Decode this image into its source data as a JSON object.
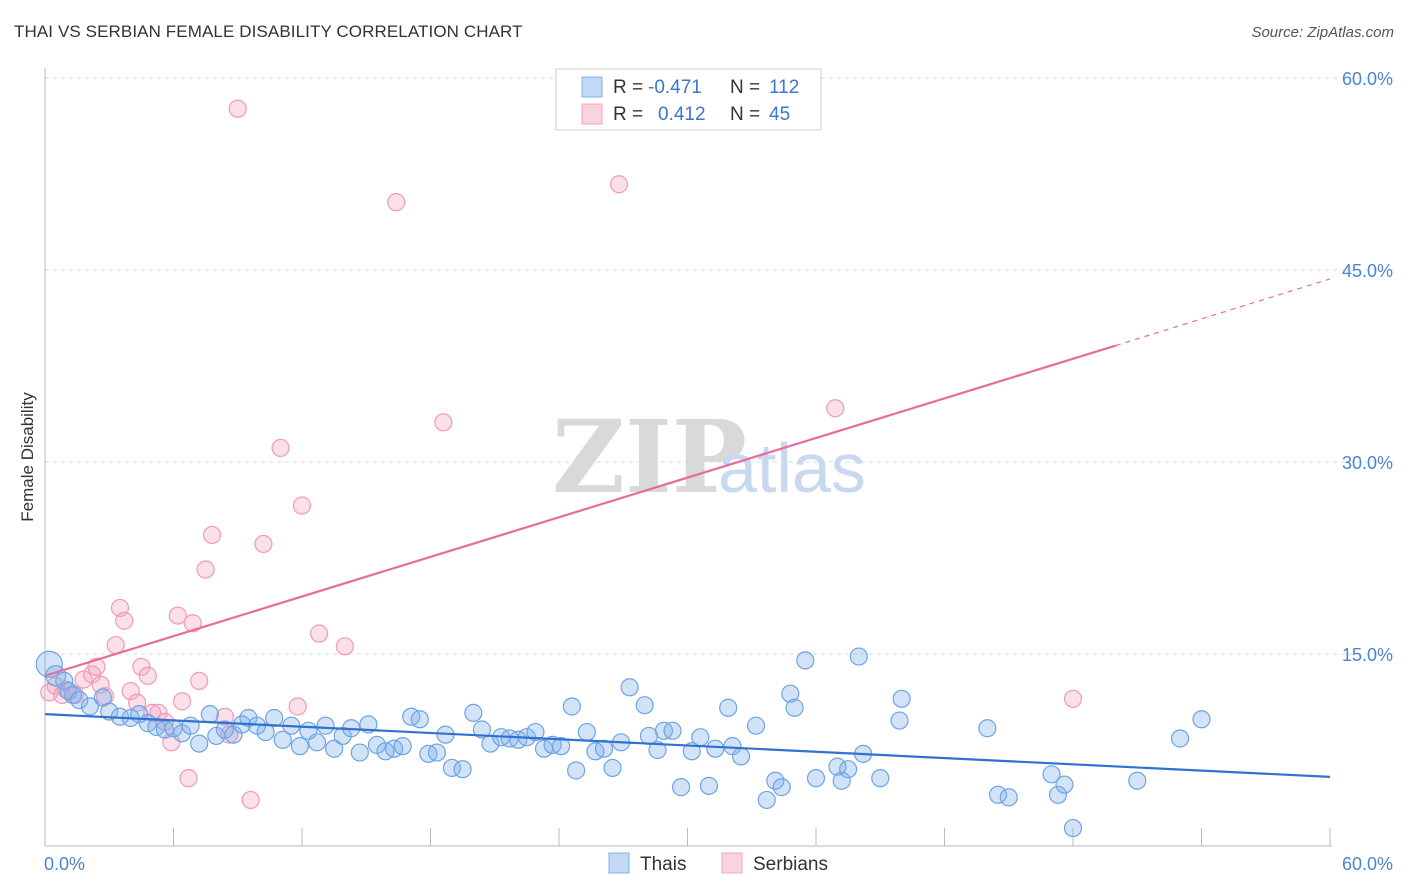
{
  "title": "THAI VS SERBIAN FEMALE DISABILITY CORRELATION CHART",
  "source": "Source: ZipAtlas.com",
  "watermark": {
    "zip": "ZIP",
    "atlas": "atlas"
  },
  "colors": {
    "thais": "#7fb0ea",
    "serbians": "#f4a6c0",
    "thais_line": "#2f72d0",
    "serbians_line": "#e86c98",
    "tick": "#4a86d0"
  },
  "chart_data": {
    "type": "scatter",
    "title": "THAI VS SERBIAN FEMALE DISABILITY CORRELATION CHART",
    "xlabel": "",
    "ylabel": "Female Disability",
    "xlim": [
      0,
      60
    ],
    "ylim": [
      0,
      60
    ],
    "x_tick_labels": [
      "0.0%",
      "60.0%"
    ],
    "y_ticks": [
      15,
      30,
      45,
      60
    ],
    "y_tick_labels": [
      "15.0%",
      "30.0%",
      "45.0%",
      "60.0%"
    ],
    "grid": true,
    "legend": {
      "placement": "top-center",
      "entries": [
        {
          "name": "Thais",
          "r_label": "R =",
          "r": "-0.471",
          "n_label": "N =",
          "n": "112"
        },
        {
          "name": "Serbians",
          "r_label": "R =",
          "r": "0.412",
          "n_label": "N =",
          "n": "45"
        }
      ]
    },
    "series": [
      {
        "name": "Thais",
        "trend": {
          "x": [
            0,
            60
          ],
          "y": [
            10.3,
            5.4
          ]
        },
        "points": [
          [
            0.2,
            14.2
          ],
          [
            0.5,
            13.3
          ],
          [
            0.9,
            12.9
          ],
          [
            1.1,
            12.1
          ],
          [
            1.3,
            11.8
          ],
          [
            1.6,
            11.4
          ],
          [
            2.1,
            10.9
          ],
          [
            2.7,
            11.6
          ],
          [
            3.0,
            10.5
          ],
          [
            3.5,
            10.1
          ],
          [
            4.0,
            10.0
          ],
          [
            4.4,
            10.3
          ],
          [
            4.8,
            9.6
          ],
          [
            5.2,
            9.3
          ],
          [
            5.6,
            9.1
          ],
          [
            6.0,
            9.2
          ],
          [
            6.4,
            8.8
          ],
          [
            6.8,
            9.4
          ],
          [
            7.2,
            8.0
          ],
          [
            7.7,
            10.3
          ],
          [
            8.0,
            8.6
          ],
          [
            8.4,
            9.1
          ],
          [
            8.8,
            8.7
          ],
          [
            9.2,
            9.5
          ],
          [
            9.5,
            10.0
          ],
          [
            9.9,
            9.4
          ],
          [
            10.3,
            8.9
          ],
          [
            10.7,
            10.0
          ],
          [
            11.1,
            8.3
          ],
          [
            11.5,
            9.4
          ],
          [
            11.9,
            7.8
          ],
          [
            12.3,
            9.0
          ],
          [
            12.7,
            8.1
          ],
          [
            13.1,
            9.4
          ],
          [
            13.5,
            7.6
          ],
          [
            13.9,
            8.6
          ],
          [
            14.3,
            9.2
          ],
          [
            14.7,
            7.3
          ],
          [
            15.1,
            9.5
          ],
          [
            15.5,
            7.9
          ],
          [
            15.9,
            7.4
          ],
          [
            16.3,
            7.6
          ],
          [
            16.7,
            7.8
          ],
          [
            17.1,
            10.1
          ],
          [
            17.5,
            9.9
          ],
          [
            17.9,
            7.2
          ],
          [
            18.3,
            7.3
          ],
          [
            18.7,
            8.7
          ],
          [
            19.0,
            6.1
          ],
          [
            19.5,
            6.0
          ],
          [
            20.0,
            10.4
          ],
          [
            20.4,
            9.1
          ],
          [
            20.8,
            8.0
          ],
          [
            21.3,
            8.5
          ],
          [
            21.7,
            8.4
          ],
          [
            22.1,
            8.3
          ],
          [
            22.5,
            8.5
          ],
          [
            22.9,
            8.9
          ],
          [
            23.3,
            7.6
          ],
          [
            23.7,
            7.9
          ],
          [
            24.1,
            7.8
          ],
          [
            24.6,
            10.9
          ],
          [
            24.8,
            5.9
          ],
          [
            25.3,
            8.9
          ],
          [
            25.7,
            7.4
          ],
          [
            26.1,
            7.6
          ],
          [
            26.5,
            6.1
          ],
          [
            26.9,
            8.1
          ],
          [
            27.3,
            12.4
          ],
          [
            28.0,
            11.0
          ],
          [
            28.2,
            8.6
          ],
          [
            28.6,
            7.5
          ],
          [
            28.9,
            9.0
          ],
          [
            29.3,
            9.0
          ],
          [
            29.7,
            4.6
          ],
          [
            30.2,
            7.4
          ],
          [
            30.6,
            8.5
          ],
          [
            31.0,
            4.7
          ],
          [
            31.3,
            7.6
          ],
          [
            31.9,
            10.8
          ],
          [
            32.1,
            7.8
          ],
          [
            32.5,
            7.0
          ],
          [
            33.2,
            9.4
          ],
          [
            33.7,
            3.6
          ],
          [
            34.1,
            5.1
          ],
          [
            34.4,
            4.6
          ],
          [
            34.8,
            11.9
          ],
          [
            35.0,
            10.8
          ],
          [
            35.5,
            14.5
          ],
          [
            36.0,
            5.3
          ],
          [
            37.0,
            6.2
          ],
          [
            37.2,
            5.1
          ],
          [
            37.5,
            6.0
          ],
          [
            38.0,
            14.8
          ],
          [
            38.2,
            7.2
          ],
          [
            39.0,
            5.3
          ],
          [
            39.9,
            9.8
          ],
          [
            40.0,
            11.5
          ],
          [
            44.0,
            9.2
          ],
          [
            44.5,
            4.0
          ],
          [
            45.0,
            3.8
          ],
          [
            47.0,
            5.6
          ],
          [
            47.3,
            4.0
          ],
          [
            47.6,
            4.8
          ],
          [
            48.0,
            1.4
          ],
          [
            51.0,
            5.1
          ],
          [
            53.0,
            8.4
          ],
          [
            54.0,
            9.9
          ]
        ]
      },
      {
        "name": "Serbians",
        "trend": {
          "x": [
            0,
            50
          ],
          "y": [
            13.3,
            39.1
          ]
        },
        "trend_extension": {
          "x": [
            50,
            60
          ],
          "y": [
            39.1,
            44.3
          ]
        },
        "points": [
          [
            0.2,
            12.0
          ],
          [
            0.5,
            12.5
          ],
          [
            0.8,
            11.8
          ],
          [
            1.0,
            12.2
          ],
          [
            1.4,
            11.8
          ],
          [
            1.8,
            13.0
          ],
          [
            2.2,
            13.4
          ],
          [
            2.4,
            14.0
          ],
          [
            2.6,
            12.6
          ],
          [
            2.8,
            11.7
          ],
          [
            3.3,
            15.7
          ],
          [
            3.5,
            18.6
          ],
          [
            3.7,
            17.6
          ],
          [
            4.0,
            12.1
          ],
          [
            4.3,
            11.2
          ],
          [
            4.5,
            14.0
          ],
          [
            4.8,
            13.3
          ],
          [
            5.0,
            10.4
          ],
          [
            5.3,
            10.4
          ],
          [
            5.6,
            9.7
          ],
          [
            5.9,
            8.1
          ],
          [
            6.2,
            18.0
          ],
          [
            6.4,
            11.3
          ],
          [
            6.7,
            5.3
          ],
          [
            6.9,
            17.4
          ],
          [
            7.2,
            12.9
          ],
          [
            7.5,
            21.6
          ],
          [
            7.8,
            24.3
          ],
          [
            8.4,
            10.1
          ],
          [
            8.6,
            8.7
          ],
          [
            9.0,
            57.6
          ],
          [
            9.6,
            3.6
          ],
          [
            10.2,
            23.6
          ],
          [
            11.0,
            31.1
          ],
          [
            11.8,
            10.9
          ],
          [
            12.0,
            26.6
          ],
          [
            12.8,
            16.6
          ],
          [
            14.0,
            15.6
          ],
          [
            16.4,
            50.3
          ],
          [
            18.6,
            33.1
          ],
          [
            26.8,
            51.7
          ],
          [
            36.9,
            34.2
          ],
          [
            48.0,
            11.5
          ]
        ]
      }
    ]
  }
}
